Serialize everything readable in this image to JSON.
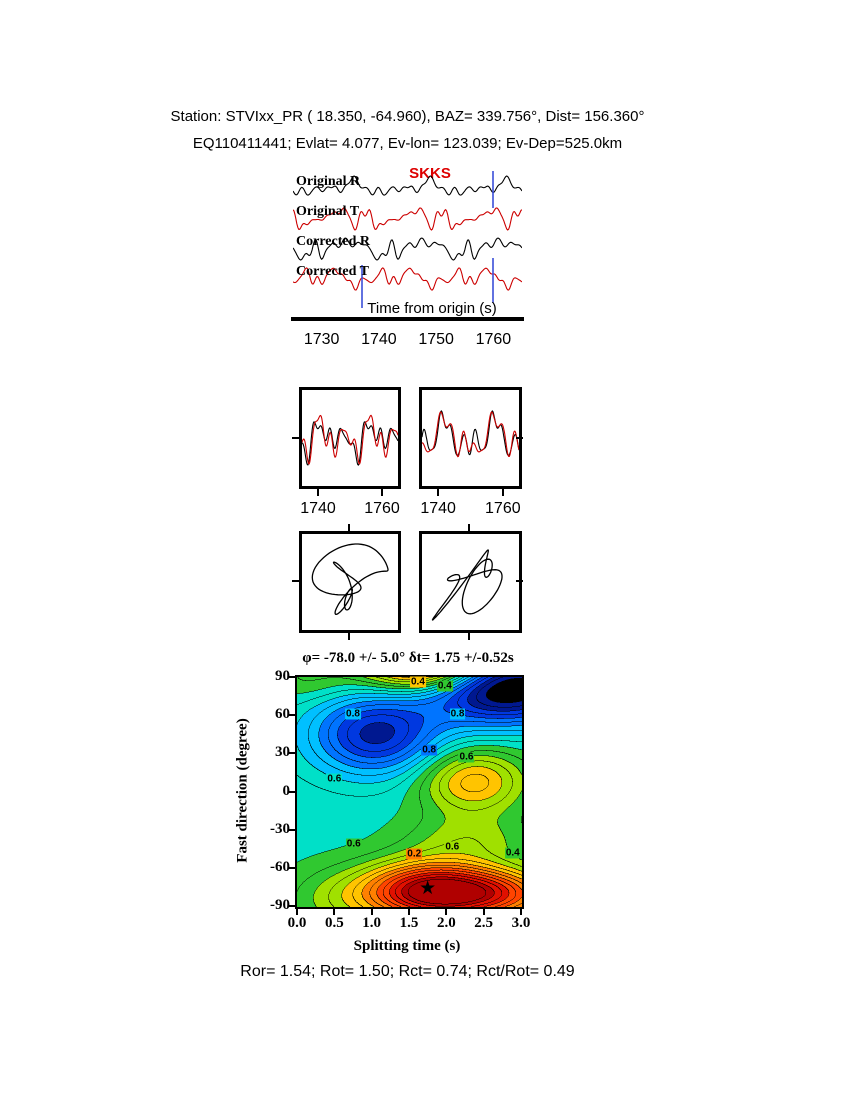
{
  "header": {
    "line1": "Station: STVIxx_PR (  18.350,  -64.960), BAZ=  339.756°, Dist=  156.360°",
    "line2": "EQ110411441; Evlat=   4.077, Ev-lon= 123.039; Ev-Dep=525.0km"
  },
  "stats_line": "Ror= 1.54; Rot= 1.50; Rct= 0.74; Rct/Rot= 0.49",
  "chart_data": [
    {
      "id": "seismograms",
      "type": "line",
      "title": "SKKS",
      "xlabel": "Time from origin (s)",
      "x_range": [
        1725,
        1765
      ],
      "x_ticks": [
        1730,
        1740,
        1750,
        1760
      ],
      "trace_labels": [
        "Original R",
        "Original T",
        "Corrected R",
        "Corrected T"
      ],
      "trace_colors": [
        "#000000",
        "#cc0000",
        "#000000",
        "#cc0000"
      ],
      "window_markers": [
        1737,
        1760.5
      ],
      "window_marker_color": "#3b4fd8",
      "seeds": [
        11,
        22,
        33,
        44
      ],
      "note": "synthetic reconstruction of unreadable waveform wiggles"
    },
    {
      "id": "selected-window",
      "type": "line",
      "x_range": [
        1735,
        1765
      ],
      "x_ticks": [
        1740,
        1760
      ],
      "panels": [
        {
          "seeds": [
            71,
            72
          ]
        },
        {
          "seeds": [
            81,
            82
          ]
        }
      ],
      "colors": [
        "#000000",
        "#cc0000"
      ]
    },
    {
      "id": "particle-motion",
      "type": "scatter",
      "panels": [
        {
          "seeds": [
            91,
            92
          ],
          "shear": 0.1
        },
        {
          "seeds": [
            101,
            102
          ],
          "shear": 0.8
        }
      ],
      "color": "#000000"
    },
    {
      "id": "misfit-surface",
      "type": "heatmap",
      "title": "φ= -78.0 +/- 5.0° δt= 1.75 +/-0.52s",
      "xlabel": "Splitting time (s)",
      "ylabel": "Fast direction (degree)",
      "xlim": [
        0,
        3
      ],
      "ylim": [
        -90,
        90
      ],
      "x_ticks": [
        "0.0",
        "0.5",
        "1.0",
        "1.5",
        "2.0",
        "2.5",
        "3.0"
      ],
      "y_ticks": [
        90,
        60,
        30,
        0,
        -30,
        -60,
        -90
      ],
      "best": {
        "dt": 1.75,
        "phi": -78,
        "marker": "★"
      },
      "band_step": 0.1,
      "line_step": 0.05,
      "palette": [
        "#b00000",
        "#e01000",
        "#ff4400",
        "#ff8000",
        "#ffc400",
        "#a0e000",
        "#30c830",
        "#00e0c8",
        "#00c0ff",
        "#0074ff",
        "#0038e0",
        "#001890",
        "#000000"
      ],
      "field": {
        "base": 0.72,
        "blobs": [
          [
            1.75,
            -78,
            -0.66,
            0.6,
            16
          ],
          [
            1.75,
            102,
            -0.66,
            0.6,
            16
          ],
          [
            2.7,
            -80,
            -0.4,
            0.6,
            14
          ],
          [
            2.35,
            8,
            -0.3,
            0.5,
            18
          ],
          [
            1.05,
            45,
            0.4,
            0.6,
            22
          ],
          [
            2.75,
            82,
            0.6,
            0.75,
            20
          ],
          [
            0.55,
            -85,
            -0.12,
            0.5,
            18
          ],
          [
            2.3,
            -38,
            -0.14,
            0.6,
            14
          ],
          [
            0.15,
            88,
            -0.08,
            0.4,
            12
          ]
        ]
      },
      "contour_labels": [
        {
          "text": "0.4",
          "bg": "#ffc400",
          "t": 1.62,
          "phi": 86
        },
        {
          "text": "0.4",
          "bg": "#30c830",
          "t": 1.98,
          "phi": 83
        },
        {
          "text": "0.8",
          "bg": "#00c0ff",
          "t": 0.75,
          "phi": 61
        },
        {
          "text": "0.8",
          "bg": "#00c0ff",
          "t": 2.15,
          "phi": 61
        },
        {
          "text": "0.8",
          "bg": "#0074ff",
          "t": 1.77,
          "phi": 33
        },
        {
          "text": "0.6",
          "bg": "#30c830",
          "t": 2.27,
          "phi": 27
        },
        {
          "text": "0.6",
          "bg": "#00e0c8",
          "t": 0.5,
          "phi": 10
        },
        {
          "text": "0.6",
          "bg": "#30c830",
          "t": 0.76,
          "phi": -41
        },
        {
          "text": "0.2",
          "bg": "#ff8000",
          "t": 1.57,
          "phi": -49
        },
        {
          "text": "0.6",
          "bg": "#a0e000",
          "t": 2.08,
          "phi": -44
        },
        {
          "text": "0.4",
          "bg": "#30c830",
          "t": 2.89,
          "phi": -48
        }
      ]
    }
  ]
}
